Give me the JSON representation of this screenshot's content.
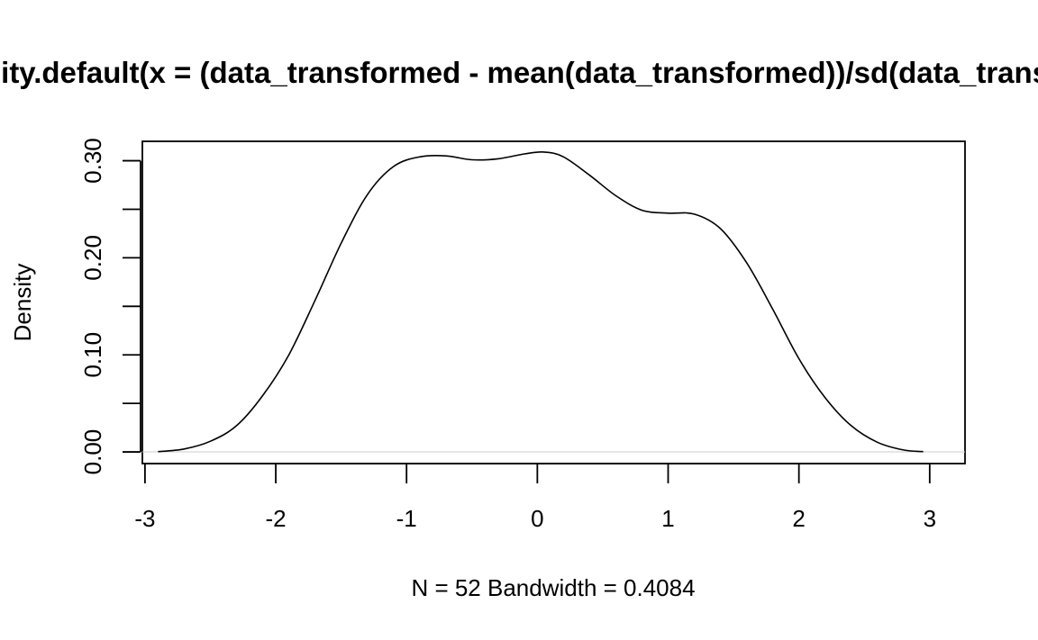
{
  "chart_data": {
    "type": "line",
    "title": "density.default(x = (data_transformed - mean(data_transformed))/sd(data_transformed))",
    "xlabel": "N = 52   Bandwidth = 0.4084",
    "ylabel": "Density",
    "xlim": [
      -3.02,
      3.27
    ],
    "ylim": [
      -0.012,
      0.32
    ],
    "x_ticks": [
      -3,
      -2,
      -1,
      0,
      1,
      2,
      3
    ],
    "x_tick_labels": [
      "-3",
      "-2",
      "-1",
      "0",
      "1",
      "2",
      "3"
    ],
    "y_ticks": [
      0.0,
      0.05,
      0.1,
      0.15,
      0.2,
      0.25,
      0.3
    ],
    "y_tick_labels": [
      "0.00",
      "",
      "0.10",
      "",
      "0.20",
      "",
      "0.30"
    ],
    "zero_line": true,
    "grid": false,
    "colors": {
      "line": "#000000",
      "zero_line": "#cccccc"
    },
    "series": [
      {
        "x": [
          -2.9,
          -2.7,
          -2.5,
          -2.3,
          -2.1,
          -1.9,
          -1.7,
          -1.5,
          -1.3,
          -1.1,
          -0.9,
          -0.7,
          -0.5,
          -0.3,
          -0.1,
          0.05,
          0.2,
          0.4,
          0.6,
          0.8,
          1.0,
          1.2,
          1.4,
          1.6,
          1.8,
          2.0,
          2.2,
          2.4,
          2.6,
          2.8,
          2.95
        ],
        "y": [
          0.0003,
          0.003,
          0.011,
          0.027,
          0.058,
          0.1,
          0.156,
          0.215,
          0.265,
          0.294,
          0.304,
          0.305,
          0.301,
          0.302,
          0.307,
          0.309,
          0.304,
          0.285,
          0.264,
          0.249,
          0.246,
          0.245,
          0.23,
          0.195,
          0.147,
          0.096,
          0.056,
          0.027,
          0.01,
          0.002,
          0.0003
        ]
      }
    ]
  }
}
